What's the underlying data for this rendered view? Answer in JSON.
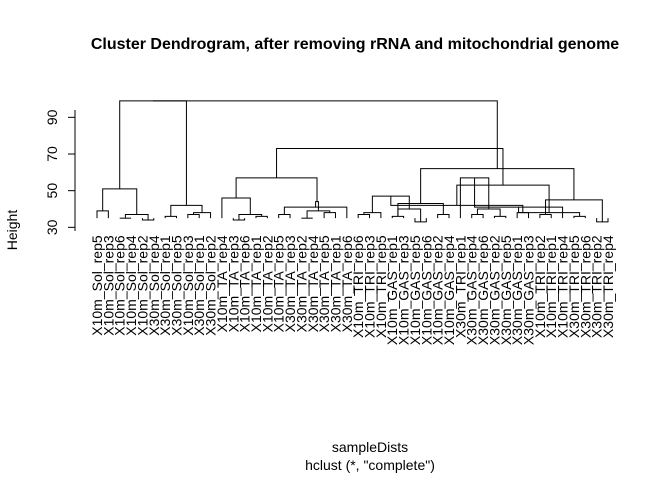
{
  "chart_data": {
    "type": "dendrogram",
    "title": "Cluster Dendrogram, after removing rRNA and mitochondrial genome",
    "xlabel": "sampleDists",
    "sub": "hclust (*, \"complete\")",
    "ylabel": "Height",
    "y_ticks": [
      30,
      50,
      70,
      90
    ],
    "ylim": [
      28,
      100
    ],
    "leaf_label_base_height": 30,
    "leaves": [
      {
        "label": "X10m_Sol_rep5",
        "h": 30
      },
      {
        "label": "X10m_Sol_rep3",
        "h": 30
      },
      {
        "label": "X10m_Sol_rep6",
        "h": 30
      },
      {
        "label": "X10m_Sol_rep4",
        "h": 30
      },
      {
        "label": "X10m_Sol_rep2",
        "h": 30
      },
      {
        "label": "X30m_Sol_rep4",
        "h": 30
      },
      {
        "label": "X30m_Sol_rep1",
        "h": 30
      },
      {
        "label": "X30m_Sol_rep5",
        "h": 30
      },
      {
        "label": "X10m_Sol_rep3",
        "h": 30
      },
      {
        "label": "X30m_Sol_rep1",
        "h": 30
      },
      {
        "label": "X30m_Sol_rep2",
        "h": 30
      },
      {
        "label": "X10m_TA_rep4",
        "h": 30
      },
      {
        "label": "X10m_TA_rep3",
        "h": 30
      },
      {
        "label": "X10m_TA_rep6",
        "h": 30
      },
      {
        "label": "X10m_TA_rep1",
        "h": 30
      },
      {
        "label": "X10m_TA_rep2",
        "h": 30
      },
      {
        "label": "X10m_TA_rep5",
        "h": 30
      },
      {
        "label": "X30m_TA_rep3",
        "h": 30
      },
      {
        "label": "X30m_TA_rep2",
        "h": 30
      },
      {
        "label": "X30m_TA_rep4",
        "h": 30
      },
      {
        "label": "X30m_TA_rep5",
        "h": 30
      },
      {
        "label": "X30m_TA_rep1",
        "h": 30
      },
      {
        "label": "X30m_TA_rep6",
        "h": 30
      },
      {
        "label": "X10m_TRI_rep6",
        "h": 30
      },
      {
        "label": "X10m_TRI_rep3",
        "h": 30
      },
      {
        "label": "X10m_TRI_rep5",
        "h": 30
      },
      {
        "label": "X10m_GAS_rep1",
        "h": 30
      },
      {
        "label": "X10m_GAS_rep3",
        "h": 30
      },
      {
        "label": "X10m_GAS_rep5",
        "h": 30
      },
      {
        "label": "X10m_GAS_rep6",
        "h": 30
      },
      {
        "label": "X10m_GAS_rep2",
        "h": 30
      },
      {
        "label": "X10m_GAS_rep4",
        "h": 30
      },
      {
        "label": "X30m_TRI_rep1",
        "h": 30
      },
      {
        "label": "X30m_GAS_rep4",
        "h": 30
      },
      {
        "label": "X30m_GAS_rep6",
        "h": 30
      },
      {
        "label": "X30m_GAS_rep2",
        "h": 30
      },
      {
        "label": "X30m_GAS_rep5",
        "h": 30
      },
      {
        "label": "X30m_GAS_rep1",
        "h": 30
      },
      {
        "label": "X30m_GAS_rep3",
        "h": 30
      },
      {
        "label": "X10m_TRI_rep2",
        "h": 30
      },
      {
        "label": "X10m_TRI_rep1",
        "h": 30
      },
      {
        "label": "X10m_TRI_rep4",
        "h": 30
      },
      {
        "label": "X30m_TRI_rep5",
        "h": 30
      },
      {
        "label": "X30m_TRI_rep6",
        "h": 30
      },
      {
        "label": "X30m_TRI_rep2",
        "h": 30
      },
      {
        "label": "X30m_TRI_rep4",
        "h": 30
      }
    ],
    "merges": [
      {
        "l": 0,
        "r": 1,
        "h": 39
      },
      {
        "l": 2,
        "r": 3,
        "h": 35
      },
      {
        "l": 4,
        "r": 5,
        "h": 34
      },
      {
        "l": -2,
        "r": -3,
        "h": 37
      },
      {
        "l": -1,
        "r": -4,
        "h": 51
      },
      {
        "l": 6,
        "r": 7,
        "h": 36
      },
      {
        "l": 8,
        "r": 9,
        "h": 37
      },
      {
        "l": -7,
        "r": 10,
        "h": 38
      },
      {
        "l": -6,
        "r": -8,
        "h": 42
      },
      {
        "l": -5,
        "r": -9,
        "h": 99
      },
      {
        "l": 12,
        "r": 13,
        "h": 34
      },
      {
        "l": 14,
        "r": 15,
        "h": 36
      },
      {
        "l": -11,
        "r": -12,
        "h": 37
      },
      {
        "l": 11,
        "r": -13,
        "h": 46
      },
      {
        "l": 16,
        "r": 17,
        "h": 37
      },
      {
        "l": 18,
        "r": 19,
        "h": 35
      },
      {
        "l": 20,
        "r": 21,
        "h": 38
      },
      {
        "l": -16,
        "r": -17,
        "h": 39
      },
      {
        "l": -15,
        "r": 22,
        "h": 41
      },
      {
        "l": -19,
        "r": -18,
        "h": 44
      },
      {
        "l": -14,
        "r": -20,
        "h": 57
      },
      {
        "l": 23,
        "r": 24,
        "h": 37
      },
      {
        "l": -22,
        "r": 25,
        "h": 38
      },
      {
        "l": 26,
        "r": 27,
        "h": 36
      },
      {
        "l": 28,
        "r": 29,
        "h": 33
      },
      {
        "l": 30,
        "r": 31,
        "h": 37
      },
      {
        "l": -25,
        "r": -24,
        "h": 40
      },
      {
        "l": -24,
        "r": -26,
        "h": 43
      },
      {
        "l": -23,
        "r": -27,
        "h": 47
      },
      {
        "l": 33,
        "r": 34,
        "h": 37
      },
      {
        "l": 35,
        "r": 36,
        "h": 36
      },
      {
        "l": 37,
        "r": 38,
        "h": 38
      },
      {
        "l": -30,
        "r": -31,
        "h": 40
      },
      {
        "l": -29,
        "r": -32,
        "h": 42
      },
      {
        "l": 32,
        "r": -33,
        "h": 57
      },
      {
        "l": 39,
        "r": 40,
        "h": 37
      },
      {
        "l": -35,
        "r": 41,
        "h": 41
      },
      {
        "l": 42,
        "r": 43,
        "h": 36
      },
      {
        "l": 44,
        "r": 45,
        "h": 33
      },
      {
        "l": -37,
        "r": -38,
        "h": 38
      },
      {
        "l": -36,
        "r": -39,
        "h": 45
      },
      {
        "l": -34,
        "r": -40,
        "h": 53
      },
      {
        "l": -28,
        "r": -41,
        "h": 62
      },
      {
        "l": -21,
        "r": -42,
        "h": 73
      },
      {
        "l": -10,
        "r": -43,
        "h": 99
      }
    ]
  }
}
